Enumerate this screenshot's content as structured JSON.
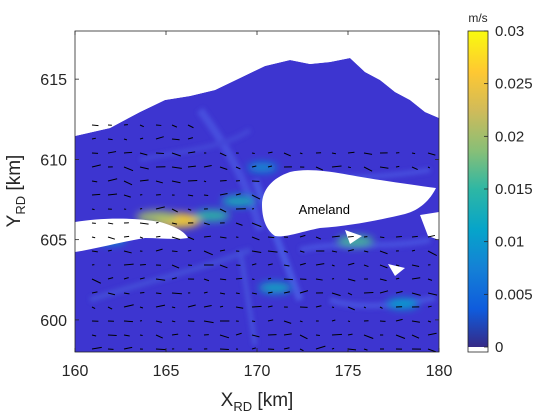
{
  "chart_data": {
    "type": "heatmap",
    "title": "",
    "xlabel": {
      "main": "X",
      "sub": "RD",
      "unit": " [km]"
    },
    "ylabel": {
      "main": "Y",
      "sub": "RD",
      "unit": " [km]"
    },
    "xlim": [
      160,
      180
    ],
    "ylim": [
      598,
      618
    ],
    "xticks": [
      "160",
      "165",
      "170",
      "175",
      "180"
    ],
    "xtick_values": [
      160,
      165,
      170,
      175,
      180
    ],
    "yticks": [
      "600",
      "605",
      "610",
      "615"
    ],
    "ytick_values": [
      600,
      605,
      610,
      615
    ],
    "annotation": {
      "text": "Ameland",
      "x": 173.7,
      "y": 606.9
    },
    "colorbar": {
      "label": "m/s",
      "colormap": "parula",
      "min": 0,
      "max": 0.03,
      "ticks": [
        "0",
        "0.005",
        "0.01",
        "0.015",
        "0.02",
        "0.025",
        "0.03"
      ],
      "tick_values": [
        0,
        0.005,
        0.01,
        0.015,
        0.02,
        0.025,
        0.03
      ]
    },
    "colors": {
      "background_field": "#3d35d0",
      "land": "#ffffff",
      "arrows": "#000000"
    },
    "hotspots": [
      {
        "x": 165.6,
        "y": 606.2,
        "value": 0.027
      },
      {
        "x": 164.5,
        "y": 606.4,
        "value": 0.02
      },
      {
        "x": 167.5,
        "y": 606.5,
        "value": 0.015
      },
      {
        "x": 169.0,
        "y": 607.4,
        "value": 0.013
      },
      {
        "x": 170.3,
        "y": 609.5,
        "value": 0.009
      },
      {
        "x": 175.4,
        "y": 604.9,
        "value": 0.016
      },
      {
        "x": 178.0,
        "y": 601.0,
        "value": 0.011
      },
      {
        "x": 171.0,
        "y": 602.0,
        "value": 0.012
      },
      {
        "x": 162.0,
        "y": 605.0,
        "value": 0.009
      }
    ]
  }
}
